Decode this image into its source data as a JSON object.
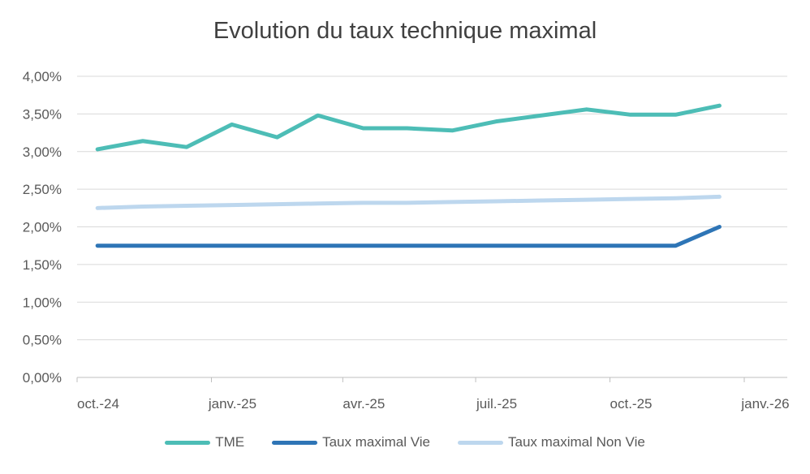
{
  "chart_data": {
    "type": "line",
    "title": "Evolution du taux technique maximal",
    "x": [
      "2024-10-15",
      "2024-11-15",
      "2024-12-15",
      "2025-01-15",
      "2025-02-15",
      "2025-03-15",
      "2025-04-15",
      "2025-05-15",
      "2025-06-15",
      "2025-07-15",
      "2025-08-15",
      "2025-09-15",
      "2025-10-15",
      "2025-11-15",
      "2025-12-15"
    ],
    "xlim": [
      "2024-10-01",
      "2026-01-01"
    ],
    "x_ticks": [
      "oct.-24",
      "janv.-25",
      "avr.-25",
      "juil.-25",
      "oct.-25",
      "janv.-26"
    ],
    "ylim": [
      0,
      4
    ],
    "y_ticks": [
      "0,00%",
      "0,50%",
      "1,00%",
      "1,50%",
      "2,00%",
      "2,50%",
      "3,00%",
      "3,50%",
      "4,00%"
    ],
    "grid": true,
    "legend_position": "bottom",
    "series": [
      {
        "name": "TME",
        "color": "#4dbdb6",
        "values": [
          3.03,
          3.14,
          3.06,
          3.36,
          3.19,
          3.48,
          3.31,
          3.31,
          3.28,
          3.4,
          3.48,
          3.56,
          3.49,
          3.49,
          3.61
        ]
      },
      {
        "name": "Taux maximal Vie",
        "color": "#2e75b6",
        "values": [
          1.75,
          1.75,
          1.75,
          1.75,
          1.75,
          1.75,
          1.75,
          1.75,
          1.75,
          1.75,
          1.75,
          1.75,
          1.75,
          1.75,
          2.0
        ]
      },
      {
        "name": "Taux maximal Non Vie",
        "color": "#bdd7ee",
        "values": [
          2.25,
          2.27,
          2.28,
          2.29,
          2.3,
          2.31,
          2.32,
          2.32,
          2.33,
          2.34,
          2.35,
          2.36,
          2.37,
          2.38,
          2.4
        ]
      }
    ]
  }
}
